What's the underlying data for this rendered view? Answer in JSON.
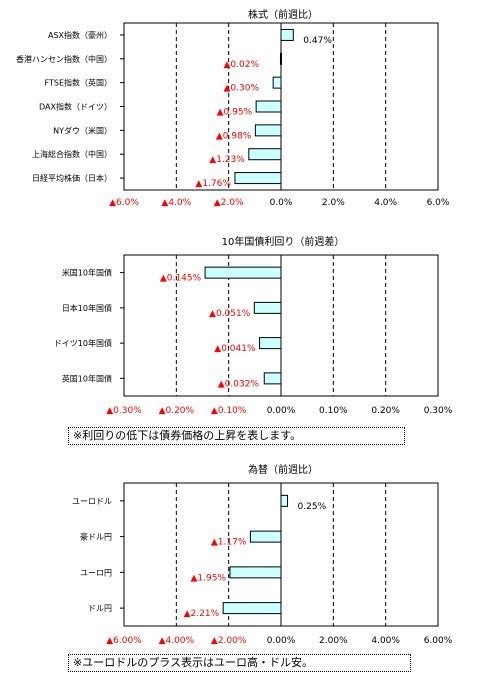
{
  "chart_data": [
    {
      "type": "bar",
      "orientation": "horizontal",
      "title": "株式（前週比）",
      "categories": [
        "ASX指数（豪州）",
        "香港ハンセン指数（中国）",
        "FTSE指数（英国）",
        "DAX指数（ドイツ）",
        "NYダウ（米国）",
        "上海総合指数（中国）",
        "日経平均株価（日本）"
      ],
      "values": [
        0.47,
        -0.02,
        -0.3,
        -0.95,
        -0.98,
        -1.23,
        -1.76
      ],
      "value_labels": [
        "0.47%",
        "▲0.02%",
        "▲0.30%",
        "▲0.95%",
        "▲0.98%",
        "▲1.23%",
        "▲1.76%"
      ],
      "xlim": [
        -6,
        6
      ],
      "ticks": [
        -6,
        -4,
        -2,
        0,
        2,
        4,
        6
      ],
      "tick_labels": [
        "▲6.0%",
        "▲4.0%",
        "▲2.0%",
        "0.0%",
        "2.0%",
        "4.0%",
        "6.0%"
      ],
      "grid": "vertical dashed",
      "bar_color": "#ccffff",
      "negative_label_color": "#ff0000"
    },
    {
      "type": "bar",
      "orientation": "horizontal",
      "title": "10年国債利回り（前週差）",
      "categories": [
        "米国10年国債",
        "日本10年国債",
        "ドイツ10年国債",
        "英国10年国債"
      ],
      "values": [
        -0.145,
        -0.051,
        -0.041,
        -0.032
      ],
      "value_labels": [
        "▲0.145%",
        "▲0.051%",
        "▲0.041%",
        "▲0.032%"
      ],
      "xlim": [
        -0.3,
        0.3
      ],
      "ticks": [
        -0.3,
        -0.2,
        -0.1,
        0,
        0.1,
        0.2,
        0.3
      ],
      "tick_labels": [
        "▲0.30%",
        "▲0.20%",
        "▲0.10%",
        "0.00%",
        "0.10%",
        "0.20%",
        "0.30%"
      ],
      "grid": "vertical dashed",
      "bar_color": "#ccffff",
      "negative_label_color": "#ff0000",
      "note": "※利回りの低下は債券価格の上昇を表します。"
    },
    {
      "type": "bar",
      "orientation": "horizontal",
      "title": "為替（前週比）",
      "categories": [
        "ユーロドル",
        "豪ドル円",
        "ユーロ円",
        "ドル円"
      ],
      "values": [
        0.25,
        -1.17,
        -1.95,
        -2.21
      ],
      "value_labels": [
        "0.25%",
        "▲1.17%",
        "▲1.95%",
        "▲2.21%"
      ],
      "xlim": [
        -6,
        6
      ],
      "ticks": [
        -6,
        -4,
        -2,
        0,
        2,
        4,
        6
      ],
      "tick_labels": [
        "▲6.00%",
        "▲4.00%",
        "▲2.00%",
        "0.00%",
        "2.00%",
        "4.00%",
        "6.00%"
      ],
      "grid": "vertical dashed",
      "bar_color": "#ccffff",
      "negative_label_color": "#ff0000",
      "note": "※ユーロドルのプラス表示はユーロ高・ドル安。"
    }
  ]
}
